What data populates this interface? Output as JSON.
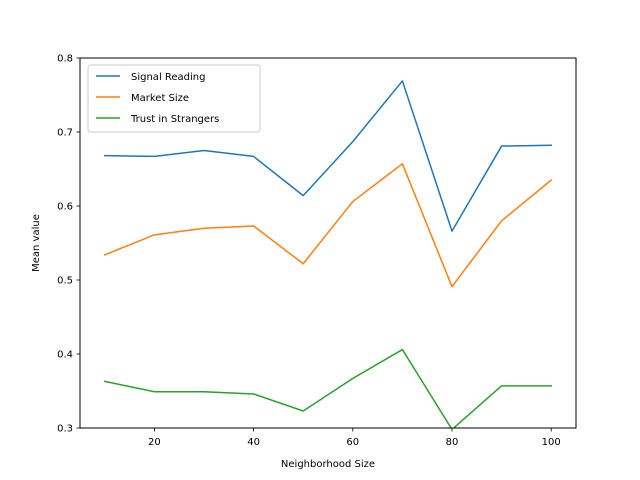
{
  "chart_data": {
    "type": "line",
    "title": "",
    "xlabel": "Neighborhood Size",
    "ylabel": "Mean value",
    "xlim": [
      5,
      105
    ],
    "ylim": [
      0.3,
      0.8
    ],
    "xticks": [
      20,
      40,
      60,
      80,
      100
    ],
    "xtick_labels": [
      "20",
      "40",
      "60",
      "80",
      "100"
    ],
    "yticks": [
      0.3,
      0.4,
      0.5,
      0.6,
      0.7,
      0.8
    ],
    "ytick_labels": [
      "0.3",
      "0.4",
      "0.5",
      "0.6",
      "0.7",
      "0.8"
    ],
    "grid": false,
    "legend_position": "top-left",
    "x": [
      10,
      20,
      30,
      40,
      50,
      60,
      70,
      80,
      90,
      100
    ],
    "series": [
      {
        "name": "Signal Reading",
        "color": "#1f77b4",
        "values": [
          0.668,
          0.667,
          0.675,
          0.667,
          0.614,
          0.687,
          0.769,
          0.566,
          0.681,
          0.682
        ]
      },
      {
        "name": "Market Size",
        "color": "#ff7f0e",
        "values": [
          0.534,
          0.561,
          0.57,
          0.573,
          0.522,
          0.606,
          0.657,
          0.491,
          0.58,
          0.635
        ]
      },
      {
        "name": "Trust in Strangers",
        "color": "#2ca02c",
        "values": [
          0.363,
          0.349,
          0.349,
          0.346,
          0.323,
          0.367,
          0.406,
          0.298,
          0.357,
          0.357
        ]
      }
    ]
  }
}
